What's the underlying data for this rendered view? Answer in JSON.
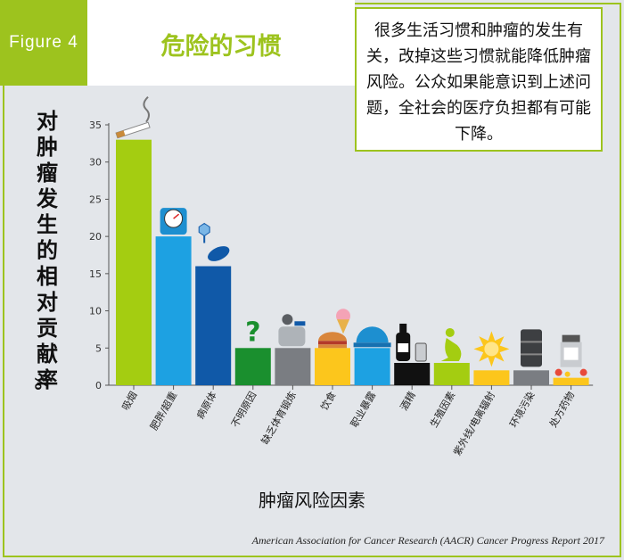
{
  "figure_tag": "Figure 4",
  "title": "危险的习惯",
  "note": "很多生活习惯和肿瘤的发生有关，改掉这些习惯就能降低肿瘤风险。公众如果能意识到上述问题，全社会的医疗负担都有可能下降。",
  "source": "American Association for Cancer Research (AACR) Cancer Progress Report 2017",
  "colors": {
    "accent": "#9dc31e",
    "green": "#a4cd11",
    "lightblue": "#1da1e2",
    "darkblue": "#1059a8",
    "darkgreen": "#1a8f2e",
    "gray": "#7a7d82",
    "yellow": "#fcc61c",
    "black": "#111111"
  },
  "chart_data": {
    "type": "bar",
    "title": "",
    "xlabel": "肿瘤风险因素",
    "ylabel": "对肿瘤发生的相对贡献率",
    "yunit": "%",
    "ylim": [
      0,
      35
    ],
    "yticks": [
      0,
      5,
      10,
      15,
      20,
      25,
      30,
      35
    ],
    "grid": false,
    "categories": [
      "吸烟",
      "肥胖/超重",
      "病原体",
      "不明原因",
      "缺乏体育锻炼",
      "饮食",
      "职业暴露",
      "酒精",
      "生殖因素",
      "紫外线/电离辐射",
      "环境污染",
      "处方药物"
    ],
    "values": [
      33,
      20,
      16,
      5,
      5,
      5,
      5,
      3,
      3,
      2,
      2,
      1
    ],
    "bar_colors": [
      "#a4cd11",
      "#1da1e2",
      "#1059a8",
      "#1a8f2e",
      "#7a7d82",
      "#fcc61c",
      "#1da1e2",
      "#111111",
      "#a4cd11",
      "#fcc61c",
      "#7a7d82",
      "#fcc61c"
    ],
    "icons": [
      "cigarette-icon",
      "scale-icon",
      "bacteria-icon",
      "question-mark-icon",
      "couch-icon",
      "burger-icon",
      "hard-hat-icon",
      "bottle-icon",
      "pregnant-woman-icon",
      "sun-icon",
      "barrel-icon",
      "pill-bottle-icon"
    ]
  }
}
